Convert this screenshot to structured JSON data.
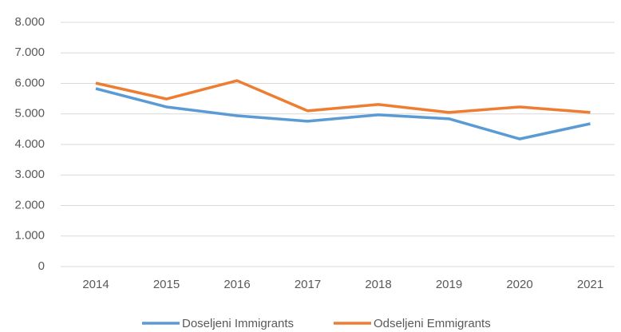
{
  "chart_data": {
    "type": "line",
    "categories": [
      "2014",
      "2015",
      "2016",
      "2017",
      "2018",
      "2019",
      "2020",
      "2021"
    ],
    "series": [
      {
        "name": "Doseljeni Immigrants",
        "color": "#5b9bd5",
        "values": [
          5830,
          5230,
          4940,
          4760,
          4970,
          4840,
          4180,
          4680
        ]
      },
      {
        "name": "Odseljeni Emmigrants",
        "color": "#ed7d31",
        "values": [
          6010,
          5490,
          6090,
          5100,
          5310,
          5050,
          5230,
          5050
        ]
      }
    ],
    "ylim": [
      0,
      8000
    ],
    "yticks": [
      0,
      {
        "value": 1000,
        "label": "1.000"
      },
      {
        "value": 2000,
        "label": "2.000"
      },
      {
        "value": 3000,
        "label": "3.000"
      },
      {
        "value": 4000,
        "label": "4.000"
      },
      {
        "value": 5000,
        "label": "5.000"
      },
      {
        "value": 6000,
        "label": "6.000"
      },
      {
        "value": 7000,
        "label": "7.000"
      },
      {
        "value": 8000,
        "label": "8.000"
      }
    ],
    "grid": true,
    "legend": "bottom"
  }
}
